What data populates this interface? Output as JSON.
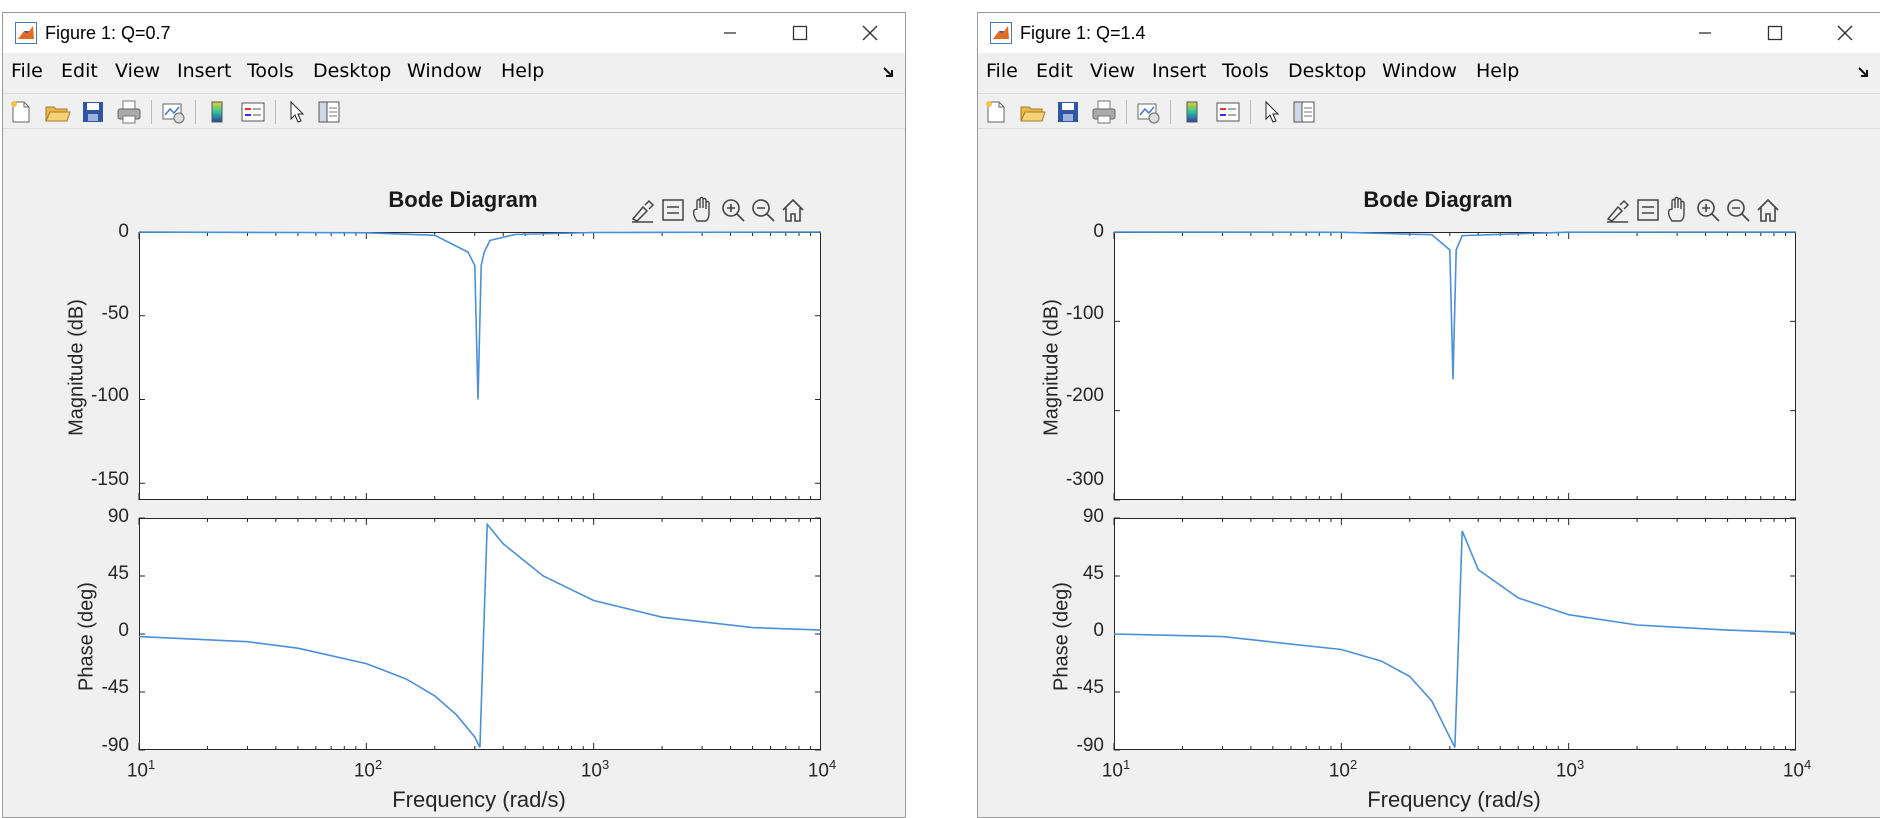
{
  "windows": [
    {
      "title": "Figure 1: Q=0.7",
      "menu": [
        "File",
        "Edit",
        "View",
        "Insert",
        "Tools",
        "Desktop",
        "Window",
        "Help"
      ],
      "plot_title": "Bode Diagram",
      "mag_ylabel": "Magnitude (dB)",
      "phase_ylabel": "Phase (deg)",
      "xlabel": "Frequency  (rad/s)",
      "mag_ticks": [
        "0",
        "-50",
        "-100",
        "-150"
      ],
      "phase_ticks": [
        "90",
        "45",
        "0",
        "-45",
        "-90"
      ],
      "x_ticks": [
        {
          "base": "10",
          "exp": "1"
        },
        {
          "base": "10",
          "exp": "2"
        },
        {
          "base": "10",
          "exp": "3"
        },
        {
          "base": "10",
          "exp": "4"
        }
      ]
    },
    {
      "title": "Figure 1: Q=1.4",
      "menu": [
        "File",
        "Edit",
        "View",
        "Insert",
        "Tools",
        "Desktop",
        "Window",
        "Help"
      ],
      "plot_title": "Bode Diagram",
      "mag_ylabel": "Magnitude (dB)",
      "phase_ylabel": "Phase (deg)",
      "xlabel": "Frequency  (rad/s)",
      "mag_ticks": [
        "0",
        "-100",
        "-200",
        "-300"
      ],
      "phase_ticks": [
        "90",
        "45",
        "0",
        "-45",
        "-90"
      ],
      "x_ticks": [
        {
          "base": "10",
          "exp": "1"
        },
        {
          "base": "10",
          "exp": "2"
        },
        {
          "base": "10",
          "exp": "3"
        },
        {
          "base": "10",
          "exp": "4"
        }
      ]
    }
  ],
  "chart_data": [
    {
      "type": "line",
      "title": "Bode Diagram",
      "subplots": [
        {
          "ylabel": "Magnitude (dB)",
          "xlabel": "",
          "xscale": "log",
          "xlim": [
            10,
            10000
          ],
          "ylim": [
            -160,
            0
          ],
          "yticks": [
            0,
            -50,
            -100,
            -150
          ],
          "series": [
            {
              "color": "#4a90d9",
              "x": [
                10,
                50,
                100,
                200,
                280,
                300,
                310,
                320,
                330,
                350,
                450,
                1000,
                10000
              ],
              "y": [
                -0.05,
                -0.3,
                -0.5,
                -2,
                -12,
                -20,
                -100,
                -20,
                -12,
                -5,
                -1.5,
                -0.3,
                0
              ]
            }
          ]
        },
        {
          "ylabel": "Phase (deg)",
          "xlabel": "Frequency  (rad/s)",
          "xscale": "log",
          "xlim": [
            10,
            10000
          ],
          "ylim": [
            -90,
            90
          ],
          "yticks": [
            90,
            45,
            0,
            -45,
            -90
          ],
          "series": [
            {
              "color": "#4a90d9",
              "x": [
                10,
                30,
                50,
                100,
                150,
                200,
                250,
                300,
                316,
                340,
                400,
                600,
                1000,
                2000,
                5000,
                10000
              ],
              "y": [
                -2,
                -6,
                -11,
                -23,
                -35,
                -48,
                -63,
                -80,
                -88,
                85,
                70,
                45,
                26,
                13,
                5,
                3
              ]
            }
          ]
        }
      ]
    },
    {
      "type": "line",
      "title": "Bode Diagram",
      "subplots": [
        {
          "ylabel": "Magnitude (dB)",
          "xlabel": "",
          "xscale": "log",
          "xlim": [
            10,
            10000
          ],
          "ylim": [
            -300,
            0
          ],
          "yticks": [
            0,
            -100,
            -200,
            -300
          ],
          "series": [
            {
              "color": "#4a90d9",
              "x": [
                10,
                100,
                250,
                300,
                310,
                320,
                340,
                1000,
                10000
              ],
              "y": [
                0,
                -0.3,
                -3,
                -20,
                -165,
                -20,
                -4,
                -0.2,
                0
              ]
            }
          ]
        },
        {
          "ylabel": "Phase (deg)",
          "xlabel": "Frequency  (rad/s)",
          "xscale": "log",
          "xlim": [
            10,
            10000
          ],
          "ylim": [
            -90,
            90
          ],
          "yticks": [
            90,
            45,
            0,
            -45,
            -90
          ],
          "series": [
            {
              "color": "#4a90d9",
              "x": [
                10,
                30,
                100,
                150,
                200,
                250,
                290,
                316,
                340,
                400,
                600,
                1000,
                2000,
                5000,
                10000
              ],
              "y": [
                0,
                -2,
                -12,
                -21,
                -33,
                -52,
                -75,
                -88,
                80,
                50,
                28,
                15,
                7,
                3,
                1
              ]
            }
          ]
        }
      ]
    }
  ]
}
